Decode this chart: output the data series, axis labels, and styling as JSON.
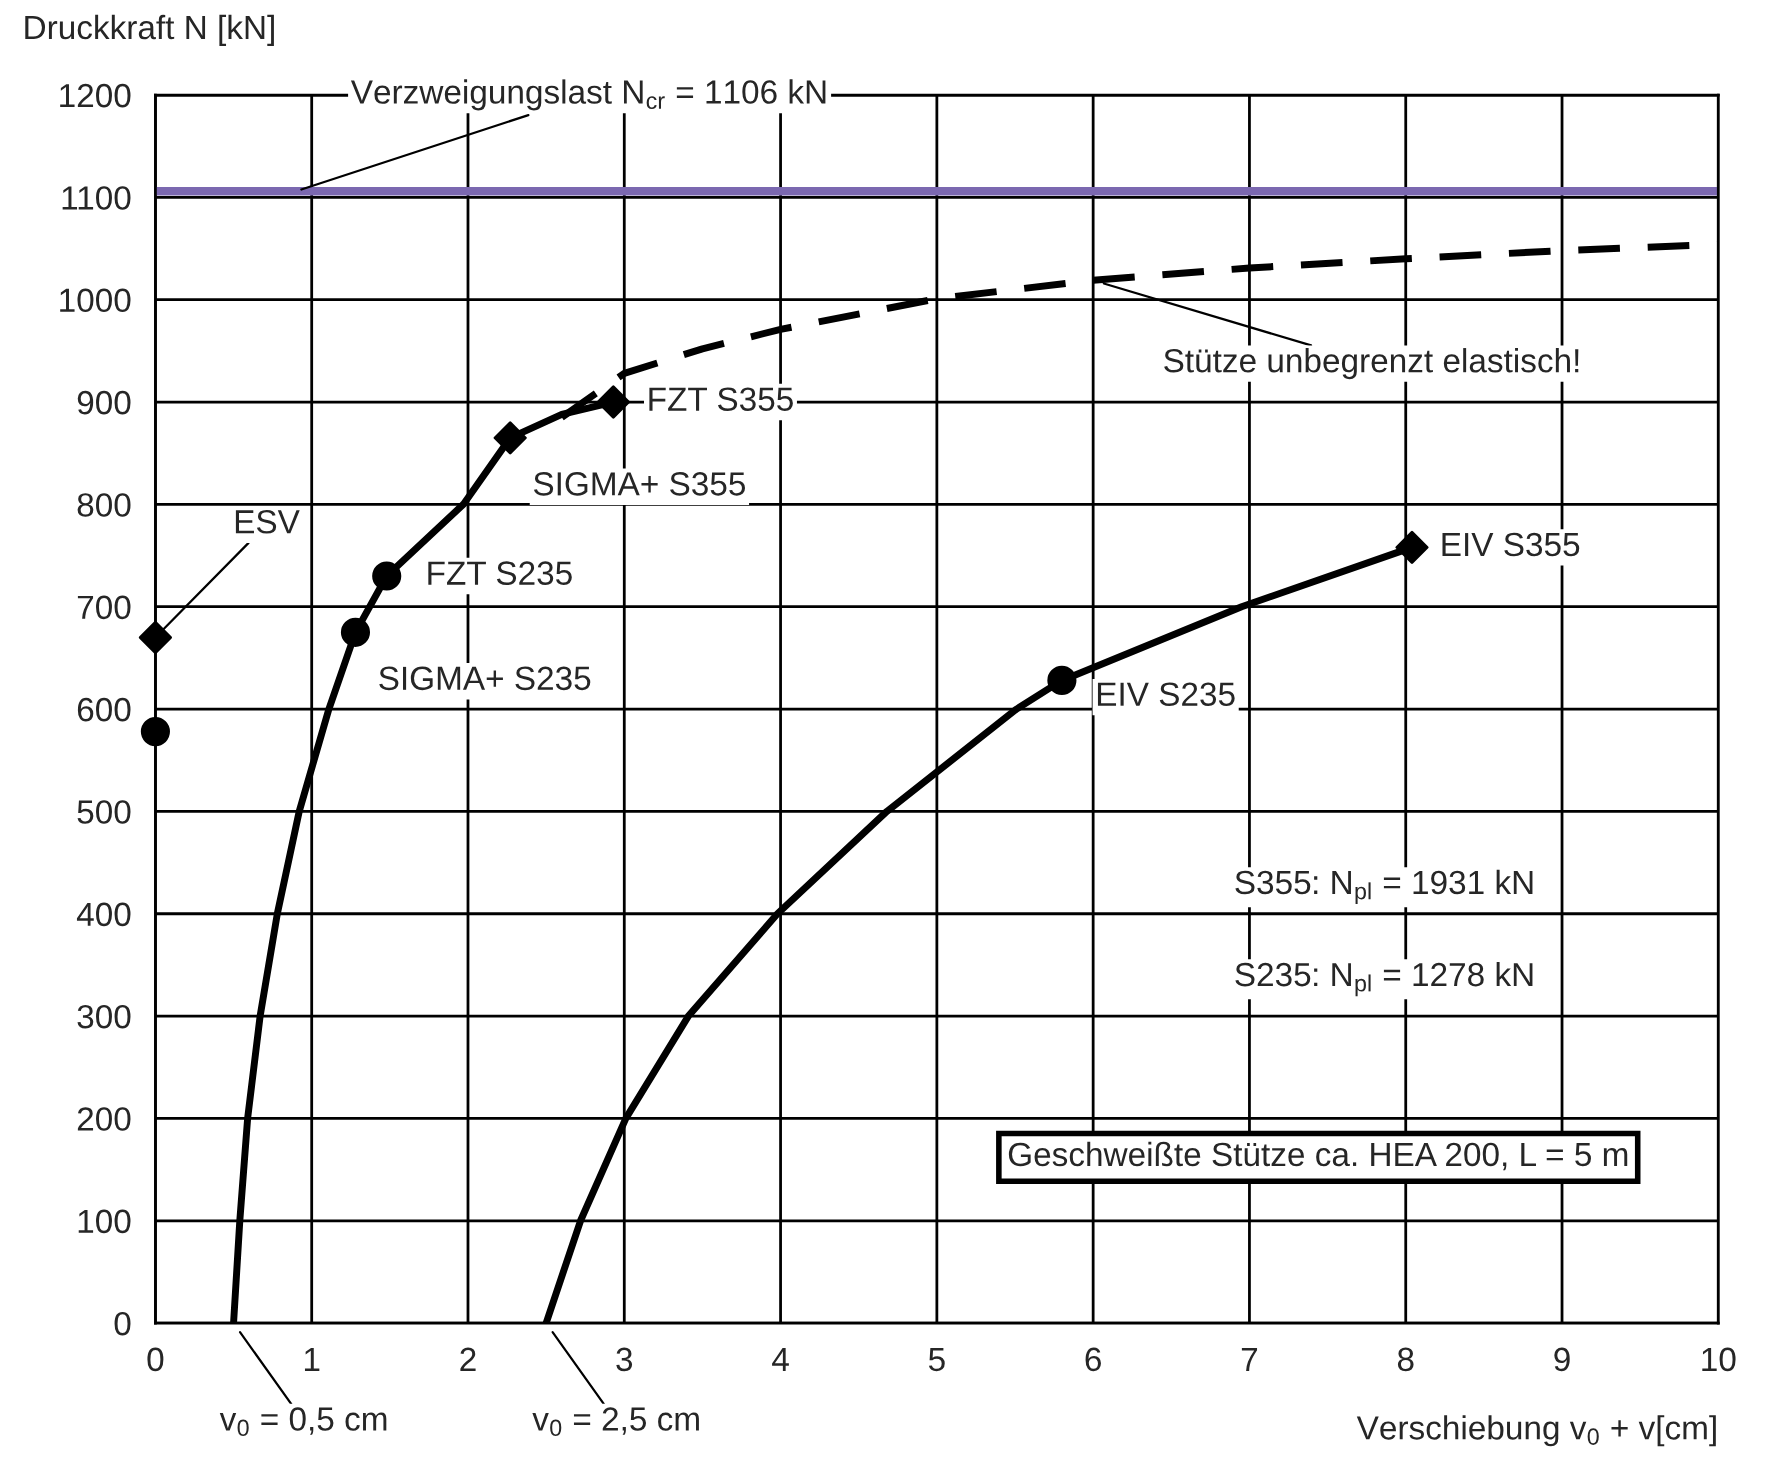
{
  "chart_data": {
    "type": "line",
    "xlabel": "Verschiebung v$_{0}$ + v[cm]",
    "ylabel": "Druckkraft N [kN]",
    "xlim": [
      0,
      10
    ],
    "ylim": [
      0,
      1200
    ],
    "xticks": [
      0,
      1,
      2,
      3,
      4,
      5,
      6,
      7,
      8,
      9,
      10
    ],
    "yticks": [
      0,
      100,
      200,
      300,
      400,
      500,
      600,
      700,
      800,
      900,
      1000,
      1100,
      1200
    ],
    "grid": true,
    "marker": "none",
    "line_style": "solid",
    "series": [
      {
        "color": "#000000",
        "x": [
          0.5,
          0.54,
          0.59,
          0.67,
          0.78,
          0.92,
          1.11,
          1.28,
          1.48,
          1.97,
          2.27,
          2.6,
          2.93
        ],
        "values": [
          0,
          100,
          200,
          300,
          400,
          500,
          600,
          675,
          730,
          800,
          865,
          888,
          900
        ]
      },
      {
        "color": "#000000",
        "line_style": "dashed",
        "x": [
          2.6,
          3,
          3.5,
          4,
          5,
          6,
          7,
          8,
          9,
          10
        ],
        "values": [
          885,
          928,
          952,
          971,
          1001,
          1019,
          1031,
          1040,
          1048,
          1054
        ]
      },
      {
        "color": "#000000",
        "x": [
          2.5,
          2.72,
          3.01,
          3.41,
          3.98,
          4.68,
          5.51,
          5.8,
          6.95,
          8.04
        ],
        "values": [
          0,
          100,
          200,
          300,
          400,
          500,
          600,
          628,
          700,
          758
        ]
      },
      {
        "type": "scatter",
        "color": "#000000",
        "marker": "diamond",
        "x": [
          0,
          2.27,
          2.93,
          8.04
        ],
        "values": [
          670,
          865,
          900,
          758
        ]
      },
      {
        "type": "scatter",
        "color": "#000000",
        "marker": "circle",
        "x": [
          0,
          1.28,
          1.48,
          5.8
        ],
        "values": [
          578,
          675,
          730,
          628
        ]
      }
    ],
    "ref_lines": [
      {
        "axis": "y",
        "value": 1106,
        "label": "Verzweigungslast N$_{cr}$ = 1106 kN",
        "color": "#7b68b0"
      }
    ],
    "annotations": [
      {
        "text": "ESV",
        "x": 0,
        "y": 670
      },
      {
        "text": "SIGMA+ S235",
        "x": 1.28,
        "y": 675
      },
      {
        "text": "FZT S235",
        "x": 1.48,
        "y": 730
      },
      {
        "text": "SIGMA+ S355",
        "x": 2.27,
        "y": 865
      },
      {
        "text": "FZT S355",
        "x": 2.93,
        "y": 900
      },
      {
        "text": "EIV S235",
        "x": 5.8,
        "y": 628
      },
      {
        "text": "EIV S355",
        "x": 8.04,
        "y": 758
      },
      {
        "text": "Stütze unbegrenzt elastisch!",
        "x": 6,
        "y": 1019
      },
      {
        "text": "v$_{0}$ = 0,5 cm",
        "x": 0.5,
        "y": 0
      },
      {
        "text": "v$_{0}$ = 2,5 cm",
        "x": 2.5,
        "y": 0
      },
      "S355: N$_{pl}$ = 1931 kN",
      "S235: N$_{pl}$ = 1278 kN",
      "Geschweißte Stütze ca. HEA 200, L = 5 m"
    ]
  }
}
